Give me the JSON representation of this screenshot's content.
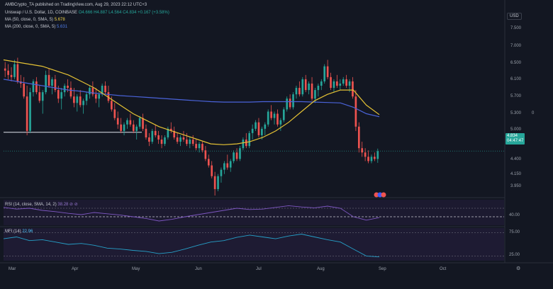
{
  "header": {
    "published": "AMBCrypto_TA published on TradingView.com, Aug 29, 2023 22:12 UTC+3",
    "symbol": "Uniswap / U.S. Dollar, 1D, COINBASE",
    "ohlc": "O4.666 H4.887 L4.564 C4.834 +0.167 (+3.58%)",
    "ma50_label": "MA (50, close, 0, SMA, 5)",
    "ma50_value": "5.678",
    "ma200_label": "MA (200, close, 0, SMA, 5)",
    "ma200_value": "5.631"
  },
  "currency": "USD",
  "price_axis": [
    "7.500",
    "7.000",
    "6.500",
    "6.100",
    "5.700",
    "5.300",
    "5.000",
    "4.400",
    "4.150",
    "3.950"
  ],
  "current_price": "4.834",
  "countdown": "04:47:47",
  "side_zero": "0",
  "rsi": {
    "label": "RSI (14, close, SMA, 14, 2)",
    "value": "38.28 ⊘ ⊘",
    "axis": "40.00"
  },
  "mfi": {
    "label": "MFI (14)",
    "value": "22.96",
    "axis_top": "75.00",
    "axis_bottom": "25.00"
  },
  "months": [
    "Mar",
    "Apr",
    "May",
    "Jun",
    "Jul",
    "Aug",
    "Sep",
    "Oct"
  ],
  "icons": {
    "settings": "gear-icon"
  },
  "colors": {
    "bg": "#131722",
    "up": "#26a69a",
    "down": "#ef5350",
    "ma50": "#e5c234",
    "ma200": "#4a63d9",
    "rsi": "#7e57c2",
    "mfi": "#26a0c8"
  },
  "chart_data": {
    "type": "candlestick",
    "title": "Uniswap / U.S. Dollar, 1D, COINBASE",
    "price_ylim": [
      3.9,
      7.6
    ],
    "candles": [
      [
        6.75,
        6.9,
        6.55,
        6.7
      ],
      [
        6.7,
        6.85,
        6.5,
        6.6
      ],
      [
        6.6,
        6.78,
        6.45,
        6.55
      ],
      [
        6.55,
        6.95,
        6.5,
        6.85
      ],
      [
        6.85,
        7.0,
        6.4,
        6.45
      ],
      [
        6.45,
        6.6,
        6.3,
        6.4
      ],
      [
        6.4,
        6.55,
        6.05,
        6.1
      ],
      [
        6.1,
        6.35,
        5.2,
        5.3
      ],
      [
        5.3,
        6.3,
        5.25,
        6.2
      ],
      [
        6.2,
        6.5,
        6.1,
        6.45
      ],
      [
        6.45,
        6.55,
        6.15,
        6.2
      ],
      [
        6.2,
        6.35,
        5.95,
        6.0
      ],
      [
        6.0,
        6.25,
        5.7,
        6.2
      ],
      [
        6.2,
        6.7,
        6.15,
        6.6
      ],
      [
        6.6,
        6.75,
        6.3,
        6.35
      ],
      [
        6.35,
        6.55,
        6.15,
        6.5
      ],
      [
        6.5,
        6.6,
        6.2,
        6.25
      ],
      [
        6.25,
        6.35,
        5.95,
        6.05
      ],
      [
        6.05,
        6.3,
        5.8,
        6.2
      ],
      [
        6.2,
        6.4,
        6.1,
        6.35
      ],
      [
        6.35,
        6.5,
        6.2,
        6.3
      ],
      [
        6.3,
        6.45,
        6.05,
        6.1
      ],
      [
        6.1,
        6.3,
        5.85,
        5.95
      ],
      [
        5.95,
        6.15,
        5.75,
        6.1
      ],
      [
        6.1,
        6.25,
        5.85,
        5.9
      ],
      [
        5.9,
        6.05,
        5.7,
        6.0
      ],
      [
        6.0,
        6.2,
        5.9,
        6.15
      ],
      [
        6.15,
        6.35,
        6.05,
        6.3
      ],
      [
        6.3,
        6.45,
        6.1,
        6.15
      ],
      [
        6.15,
        6.3,
        5.95,
        6.05
      ],
      [
        6.05,
        6.2,
        5.85,
        6.15
      ],
      [
        6.15,
        6.4,
        6.1,
        6.35
      ],
      [
        6.35,
        6.45,
        6.15,
        6.2
      ],
      [
        6.2,
        6.35,
        5.95,
        6.0
      ],
      [
        6.0,
        6.1,
        5.75,
        5.8
      ],
      [
        5.8,
        5.95,
        5.55,
        5.6
      ],
      [
        5.6,
        5.75,
        5.35,
        5.45
      ],
      [
        5.45,
        5.6,
        5.25,
        5.3
      ],
      [
        5.3,
        5.5,
        5.2,
        5.45
      ],
      [
        5.45,
        5.6,
        5.35,
        5.55
      ],
      [
        5.55,
        5.7,
        5.4,
        5.45
      ],
      [
        5.45,
        5.55,
        5.25,
        5.3
      ],
      [
        5.3,
        5.45,
        5.1,
        5.4
      ],
      [
        5.4,
        5.65,
        5.35,
        5.6
      ],
      [
        5.6,
        5.7,
        5.3,
        5.35
      ],
      [
        5.35,
        5.45,
        5.1,
        5.15
      ],
      [
        5.15,
        5.25,
        4.95,
        5.05
      ],
      [
        5.05,
        5.35,
        5.0,
        5.3
      ],
      [
        5.3,
        5.45,
        5.15,
        5.2
      ],
      [
        5.2,
        5.3,
        5.0,
        5.1
      ],
      [
        5.1,
        5.2,
        4.9,
        5.0
      ],
      [
        5.0,
        5.2,
        4.95,
        5.15
      ],
      [
        5.15,
        5.4,
        5.1,
        5.35
      ],
      [
        5.35,
        5.5,
        5.25,
        5.3
      ],
      [
        5.3,
        5.4,
        5.1,
        5.15
      ],
      [
        5.15,
        5.25,
        5.0,
        5.05
      ],
      [
        5.05,
        5.2,
        4.95,
        5.15
      ],
      [
        5.15,
        5.3,
        5.05,
        5.1
      ],
      [
        5.1,
        5.25,
        4.95,
        5.0
      ],
      [
        5.0,
        5.15,
        4.9,
        5.1
      ],
      [
        5.1,
        5.2,
        4.95,
        5.0
      ],
      [
        5.0,
        5.1,
        4.85,
        4.9
      ],
      [
        4.9,
        5.05,
        4.8,
        5.0
      ],
      [
        5.0,
        5.05,
        4.8,
        4.85
      ],
      [
        4.85,
        4.95,
        4.6,
        4.65
      ],
      [
        4.65,
        4.75,
        4.45,
        4.5
      ],
      [
        4.5,
        4.6,
        4.2,
        4.25
      ],
      [
        4.25,
        4.35,
        3.8,
        3.95
      ],
      [
        3.95,
        4.3,
        3.9,
        4.25
      ],
      [
        4.25,
        4.45,
        4.1,
        4.4
      ],
      [
        4.4,
        4.6,
        4.3,
        4.55
      ],
      [
        4.55,
        4.75,
        4.4,
        4.45
      ],
      [
        4.45,
        4.65,
        4.35,
        4.6
      ],
      [
        4.6,
        4.85,
        4.55,
        4.8
      ],
      [
        4.8,
        4.9,
        4.6,
        4.65
      ],
      [
        4.65,
        4.95,
        4.6,
        4.9
      ],
      [
        4.9,
        5.15,
        4.85,
        5.1
      ],
      [
        5.1,
        5.25,
        4.9,
        4.95
      ],
      [
        4.95,
        5.3,
        4.9,
        5.25
      ],
      [
        5.25,
        5.45,
        5.1,
        5.35
      ],
      [
        5.35,
        5.55,
        5.3,
        5.5
      ],
      [
        5.5,
        5.6,
        5.15,
        5.2
      ],
      [
        5.2,
        5.4,
        5.1,
        5.35
      ],
      [
        5.35,
        5.5,
        5.2,
        5.45
      ],
      [
        5.45,
        5.8,
        5.4,
        5.75
      ],
      [
        5.75,
        5.9,
        5.55,
        5.6
      ],
      [
        5.6,
        5.75,
        5.45,
        5.7
      ],
      [
        5.7,
        5.8,
        5.4,
        5.45
      ],
      [
        5.45,
        5.6,
        5.3,
        5.55
      ],
      [
        5.55,
        5.85,
        5.5,
        5.8
      ],
      [
        5.8,
        6.1,
        5.75,
        6.05
      ],
      [
        6.05,
        6.15,
        5.8,
        5.85
      ],
      [
        5.85,
        6.2,
        5.8,
        6.15
      ],
      [
        6.15,
        6.35,
        6.05,
        6.3
      ],
      [
        6.3,
        6.45,
        6.1,
        6.15
      ],
      [
        6.15,
        6.55,
        6.1,
        6.5
      ],
      [
        6.5,
        6.6,
        6.2,
        6.25
      ],
      [
        6.25,
        6.45,
        6.15,
        6.4
      ],
      [
        6.4,
        6.55,
        6.0,
        6.05
      ],
      [
        6.05,
        6.3,
        5.95,
        6.25
      ],
      [
        6.25,
        6.4,
        6.1,
        6.35
      ],
      [
        6.35,
        6.5,
        6.25,
        6.45
      ],
      [
        6.45,
        6.85,
        6.4,
        6.8
      ],
      [
        6.8,
        6.95,
        6.5,
        6.55
      ],
      [
        6.55,
        6.65,
        6.25,
        6.3
      ],
      [
        6.3,
        6.5,
        6.2,
        6.45
      ],
      [
        6.45,
        6.6,
        6.3,
        6.35
      ],
      [
        6.35,
        6.5,
        6.25,
        6.4
      ],
      [
        6.4,
        6.55,
        6.35,
        6.5
      ],
      [
        6.5,
        6.6,
        6.3,
        6.35
      ],
      [
        6.35,
        6.5,
        6.2,
        6.45
      ],
      [
        6.45,
        6.55,
        6.05,
        6.1
      ],
      [
        6.1,
        6.25,
        5.3,
        5.4
      ],
      [
        5.4,
        5.5,
        4.8,
        4.9
      ],
      [
        4.9,
        5.05,
        4.7,
        4.8
      ],
      [
        4.8,
        4.9,
        4.6,
        4.7
      ],
      [
        4.7,
        4.85,
        4.55,
        4.6
      ],
      [
        4.6,
        4.75,
        4.55,
        4.7
      ],
      [
        4.7,
        4.8,
        4.6,
        4.65
      ],
      [
        4.65,
        4.89,
        4.56,
        4.83
      ]
    ],
    "ma50": [
      6.95,
      6.9,
      6.85,
      6.8,
      6.7,
      6.6,
      6.45,
      6.3,
      6.1,
      5.9,
      5.7,
      5.55,
      5.4,
      5.3,
      5.2,
      5.1,
      5.0,
      4.98,
      5.0,
      5.05,
      5.15,
      5.3,
      5.5,
      5.75,
      6.0,
      6.15,
      6.25,
      6.25,
      5.9,
      5.68
    ],
    "ma200": [
      6.5,
      6.45,
      6.4,
      6.35,
      6.3,
      6.25,
      6.22,
      6.18,
      6.15,
      6.12,
      6.1,
      6.08,
      6.06,
      6.04,
      6.02,
      6.0,
      5.98,
      5.97,
      5.97,
      5.97,
      5.98,
      5.98,
      5.98,
      5.98,
      5.97,
      5.96,
      5.95,
      5.85,
      5.7,
      5.63
    ],
    "rsi_values": [
      62,
      58,
      60,
      55,
      52,
      48,
      45,
      50,
      47,
      44,
      40,
      36,
      30,
      34,
      40,
      45,
      50,
      55,
      60,
      57,
      58,
      62,
      66,
      63,
      61,
      65,
      60,
      40,
      32,
      38
    ],
    "mfi_values": [
      62,
      66,
      58,
      60,
      55,
      50,
      52,
      48,
      42,
      40,
      37,
      35,
      30,
      33,
      40,
      48,
      55,
      58,
      65,
      70,
      66,
      62,
      68,
      72,
      66,
      60,
      55,
      40,
      25,
      23
    ]
  }
}
